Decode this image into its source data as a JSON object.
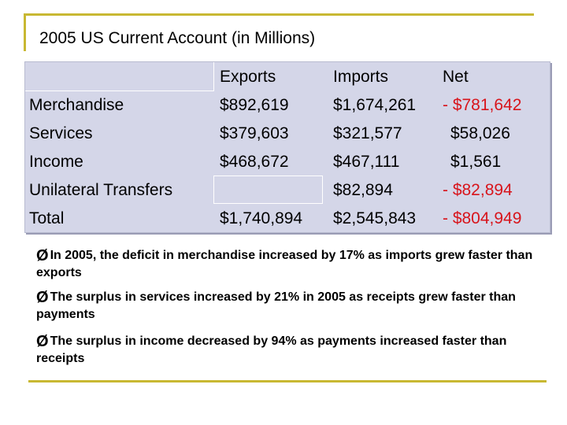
{
  "title": "2005 US Current Account (in Millions)",
  "table": {
    "headers": [
      "",
      "Exports",
      "Imports",
      "Net"
    ],
    "rows": [
      {
        "label": "Merchandise",
        "exports": "$892,619",
        "imports": "$1,674,261",
        "net": "- $781,642",
        "net_color": "#d8141b"
      },
      {
        "label": "Services",
        "exports": "$379,603",
        "imports": "$321,577",
        "net": "$58,026",
        "net_color": "#000000"
      },
      {
        "label": "Income",
        "exports": "$468,672",
        "imports": "$467,111",
        "net": "$1,561",
        "net_color": "#000000"
      },
      {
        "label": "Unilateral Transfers",
        "exports": "",
        "imports": "$82,894",
        "net": "- $82,894",
        "net_color": "#d8141b"
      },
      {
        "label": "Total",
        "exports": "$1,740,894",
        "imports": "$2,545,843",
        "net": "- $804,949",
        "net_color": "#d8141b"
      }
    ]
  },
  "bullets": [
    {
      "icon": "arrow-bullet-icon",
      "marker": "Ø",
      "text": "In 2005, the deficit in merchandise increased by 17% as imports grew faster than exports"
    },
    {
      "icon": "arrow-bullet-icon",
      "marker": "Ø",
      "text": "The surplus in services increased by 21% in 2005 as receipts grew faster than payments"
    },
    {
      "icon": "arrow-bullet-icon",
      "marker": "Ø",
      "text": "The surplus in income decreased by 94% as payments increased faster than receipts"
    }
  ],
  "colors": {
    "frame": "#c8b832",
    "table_bg": "#d4d6e8",
    "negative": "#d8141b"
  }
}
